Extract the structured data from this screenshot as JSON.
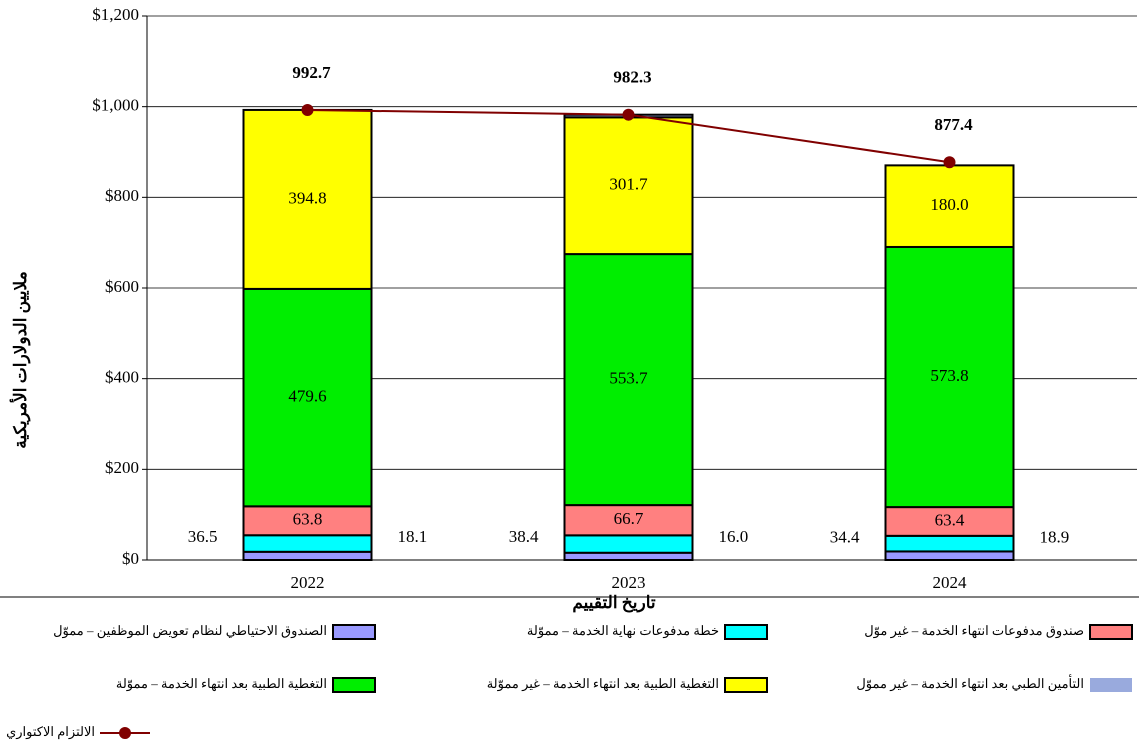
{
  "chart_data": {
    "type": "stacked_bar_line",
    "y_label": "ملايين الدولارات الأمريكية",
    "x_label": "تاريخ التقييم",
    "categories": [
      "2022",
      "2023",
      "2024"
    ],
    "ylim": [
      0,
      1200
    ],
    "yticks": [
      {
        "value": 0,
        "label": "$0"
      },
      {
        "value": 200,
        "label": "$200"
      },
      {
        "value": 400,
        "label": "$400"
      },
      {
        "value": 600,
        "label": "$600"
      },
      {
        "value": 800,
        "label": "$800"
      },
      {
        "value": 1000,
        "label": "$1,000"
      },
      {
        "value": 1200,
        "label": "$1,200"
      }
    ],
    "grid": true,
    "series": [
      {
        "name": "الصندوق الاحتياطي لنظام تعويض الموظفين – مموّل",
        "color": "#9999ff",
        "values": [
          18.1,
          16.0,
          18.9
        ],
        "value_labels": [
          "18.1",
          "16.0",
          "18.9"
        ]
      },
      {
        "name": "خطة مدفوعات نهاية الخدمة – مموّلة",
        "color": "#00ffff",
        "values": [
          36.5,
          38.4,
          34.4
        ],
        "value_labels": [
          "36.5",
          "38.4",
          "34.4"
        ]
      },
      {
        "name": "صندوق مدفوعات انتهاء الخدمة – غير موّل",
        "color": "#ff8080",
        "values": [
          63.8,
          66.7,
          63.4
        ],
        "value_labels": [
          "63.8",
          "66.7",
          "63.4"
        ]
      },
      {
        "name": "التغطية الطبية بعد انتهاء الخدمة – مموّلة",
        "color": "#00ee00",
        "values": [
          479.6,
          553.7,
          573.8
        ],
        "value_labels": [
          "479.6",
          "553.7",
          "573.8"
        ]
      },
      {
        "name": "التغطية الطبية بعد انتهاء الخدمة – غير مموّلة",
        "color": "#ffff00",
        "values": [
          394.8,
          301.7,
          180.0
        ],
        "value_labels": [
          "394.8",
          "301.7",
          "180.0"
        ]
      },
      {
        "name": "التأمين الطبي بعد انتهاء الخدمة – غير مموّل",
        "color": "#99aadd",
        "values": [
          0,
          5.8,
          0
        ]
      }
    ],
    "line": {
      "name": "الالتزام الاكتواري",
      "color": "#800000",
      "values": [
        992.7,
        982.3,
        877.4
      ],
      "value_labels": [
        "992.7",
        "982.3",
        "877.4"
      ]
    }
  }
}
